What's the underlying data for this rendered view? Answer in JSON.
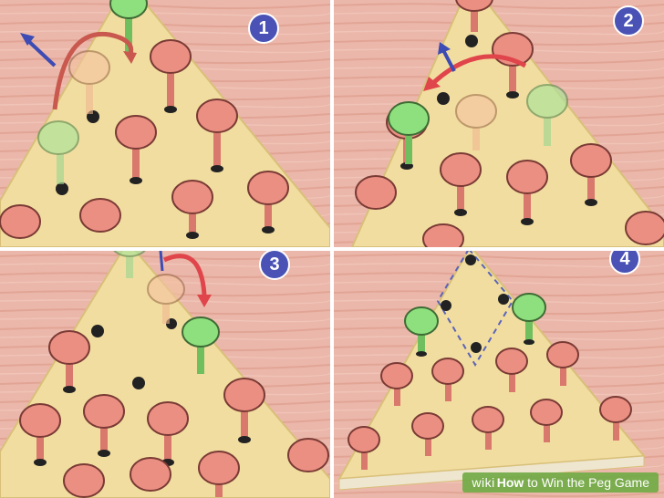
{
  "panels": [
    {
      "step": "1"
    },
    {
      "step": "2"
    },
    {
      "step": "3"
    },
    {
      "step": "4"
    }
  ],
  "watermark": {
    "brand": "wiki",
    "how": "How",
    "title": "to Win the Peg Game"
  },
  "colors": {
    "wood_table": "#e9b1a4",
    "board": "#f3e1a3",
    "peg_red": "#e98b7e",
    "peg_green": "#8ee07e",
    "arrow_red": "#e0454b",
    "arrow_blue": "#3d4bb4",
    "badge": "#4a53b5"
  }
}
